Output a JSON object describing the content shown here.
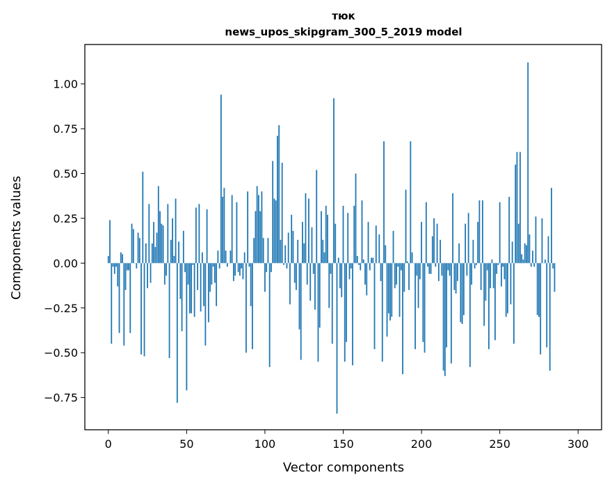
{
  "chart_data": {
    "type": "bar",
    "title": "тюк",
    "subtitle": "news_upos_skipgram_300_5_2019 model",
    "xlabel": "Vector components",
    "ylabel": "Components values",
    "xlim": [
      -15,
      315
    ],
    "ylim": [
      -0.93,
      1.22
    ],
    "xticks": [
      0,
      50,
      100,
      150,
      200,
      250,
      300
    ],
    "xtick_labels": [
      "0",
      "50",
      "100",
      "150",
      "200",
      "250",
      "300"
    ],
    "yticks": [
      -0.75,
      -0.5,
      -0.25,
      0.0,
      0.25,
      0.5,
      0.75,
      1.0
    ],
    "ytick_labels": [
      "−0.75",
      "−0.50",
      "−0.25",
      "0.00",
      "0.25",
      "0.50",
      "0.75",
      "1.00"
    ],
    "grid": false,
    "bar_color": "#1f77b4",
    "values": [
      0.04,
      0.24,
      -0.45,
      -0.02,
      -0.06,
      -0.02,
      -0.13,
      -0.39,
      0.06,
      0.05,
      -0.46,
      -0.15,
      -0.04,
      -0.04,
      -0.39,
      0.22,
      0.19,
      0.0,
      -0.03,
      0.17,
      0.14,
      -0.51,
      0.51,
      -0.52,
      0.11,
      -0.14,
      0.33,
      -0.11,
      0.11,
      0.23,
      0.09,
      0.17,
      0.43,
      0.29,
      0.22,
      0.21,
      -0.12,
      -0.07,
      0.33,
      -0.53,
      0.13,
      0.25,
      0.04,
      0.36,
      -0.78,
      0.12,
      -0.2,
      -0.38,
      0.18,
      -0.05,
      -0.71,
      -0.12,
      -0.28,
      -0.28,
      -0.01,
      -0.3,
      0.31,
      -0.15,
      0.33,
      -0.27,
      0.06,
      -0.24,
      -0.46,
      0.3,
      -0.33,
      -0.16,
      -0.12,
      -0.02,
      -0.11,
      -0.24,
      0.07,
      -0.03,
      0.94,
      0.37,
      0.42,
      0.07,
      -0.02,
      0.0,
      0.07,
      0.38,
      -0.1,
      -0.07,
      0.34,
      -0.05,
      -0.07,
      -0.03,
      -0.09,
      0.06,
      -0.5,
      0.4,
      -0.02,
      -0.24,
      -0.48,
      0.14,
      0.29,
      0.43,
      0.38,
      0.29,
      0.4,
      0.14,
      -0.16,
      -0.05,
      0.14,
      -0.58,
      -0.05,
      0.57,
      0.36,
      0.35,
      0.71,
      0.77,
      0.13,
      0.56,
      -0.01,
      0.1,
      -0.03,
      0.17,
      -0.23,
      0.27,
      0.18,
      -0.11,
      -0.15,
      0.13,
      -0.37,
      -0.54,
      0.23,
      0.11,
      0.39,
      -0.12,
      0.36,
      -0.21,
      0.2,
      -0.06,
      -0.26,
      0.52,
      -0.55,
      -0.36,
      0.29,
      0.13,
      0.06,
      0.32,
      0.27,
      -0.25,
      -0.06,
      -0.45,
      0.92,
      0.22,
      -0.84,
      0.03,
      -0.14,
      -0.19,
      0.32,
      -0.55,
      -0.44,
      0.28,
      -0.09,
      -0.03,
      -0.57,
      0.32,
      0.5,
      0.04,
      -0.01,
      -0.04,
      0.35,
      0.02,
      -0.12,
      -0.18,
      0.23,
      -0.04,
      0.03,
      0.03,
      -0.48,
      0.21,
      0.0,
      0.16,
      -0.1,
      -0.55,
      0.68,
      0.1,
      -0.41,
      -0.28,
      -0.32,
      -0.3,
      0.18,
      -0.14,
      -0.12,
      -0.02,
      -0.3,
      -0.04,
      -0.62,
      -0.16,
      0.41,
      0.01,
      -0.15,
      0.68,
      0.06,
      0.0,
      -0.48,
      -0.07,
      -0.25,
      -0.09,
      0.23,
      -0.44,
      -0.5,
      0.34,
      -0.02,
      -0.06,
      -0.06,
      0.15,
      0.25,
      -0.02,
      0.22,
      -0.1,
      0.13,
      -0.07,
      -0.6,
      -0.63,
      -0.47,
      -0.04,
      -0.07,
      -0.56,
      0.39,
      -0.15,
      -0.17,
      -0.1,
      0.11,
      -0.33,
      -0.34,
      -0.29,
      0.22,
      -0.07,
      0.28,
      -0.58,
      -0.12,
      0.13,
      -0.03,
      -0.01,
      0.23,
      0.35,
      -0.15,
      0.35,
      -0.35,
      -0.21,
      -0.04,
      -0.48,
      -0.14,
      0.02,
      -0.14,
      -0.43,
      -0.06,
      -0.01,
      0.34,
      -0.13,
      -0.02,
      -0.09,
      -0.3,
      -0.28,
      0.37,
      -0.23,
      0.12,
      -0.45,
      0.55,
      0.62,
      0.22,
      0.62,
      0.05,
      0.02,
      0.11,
      0.1,
      1.12,
      0.16,
      -0.02,
      0.07,
      -0.02,
      0.26,
      -0.29,
      -0.3,
      -0.51,
      0.25,
      0.0,
      0.02,
      -0.47,
      0.15,
      -0.6,
      0.42,
      -0.03,
      -0.16
    ]
  }
}
